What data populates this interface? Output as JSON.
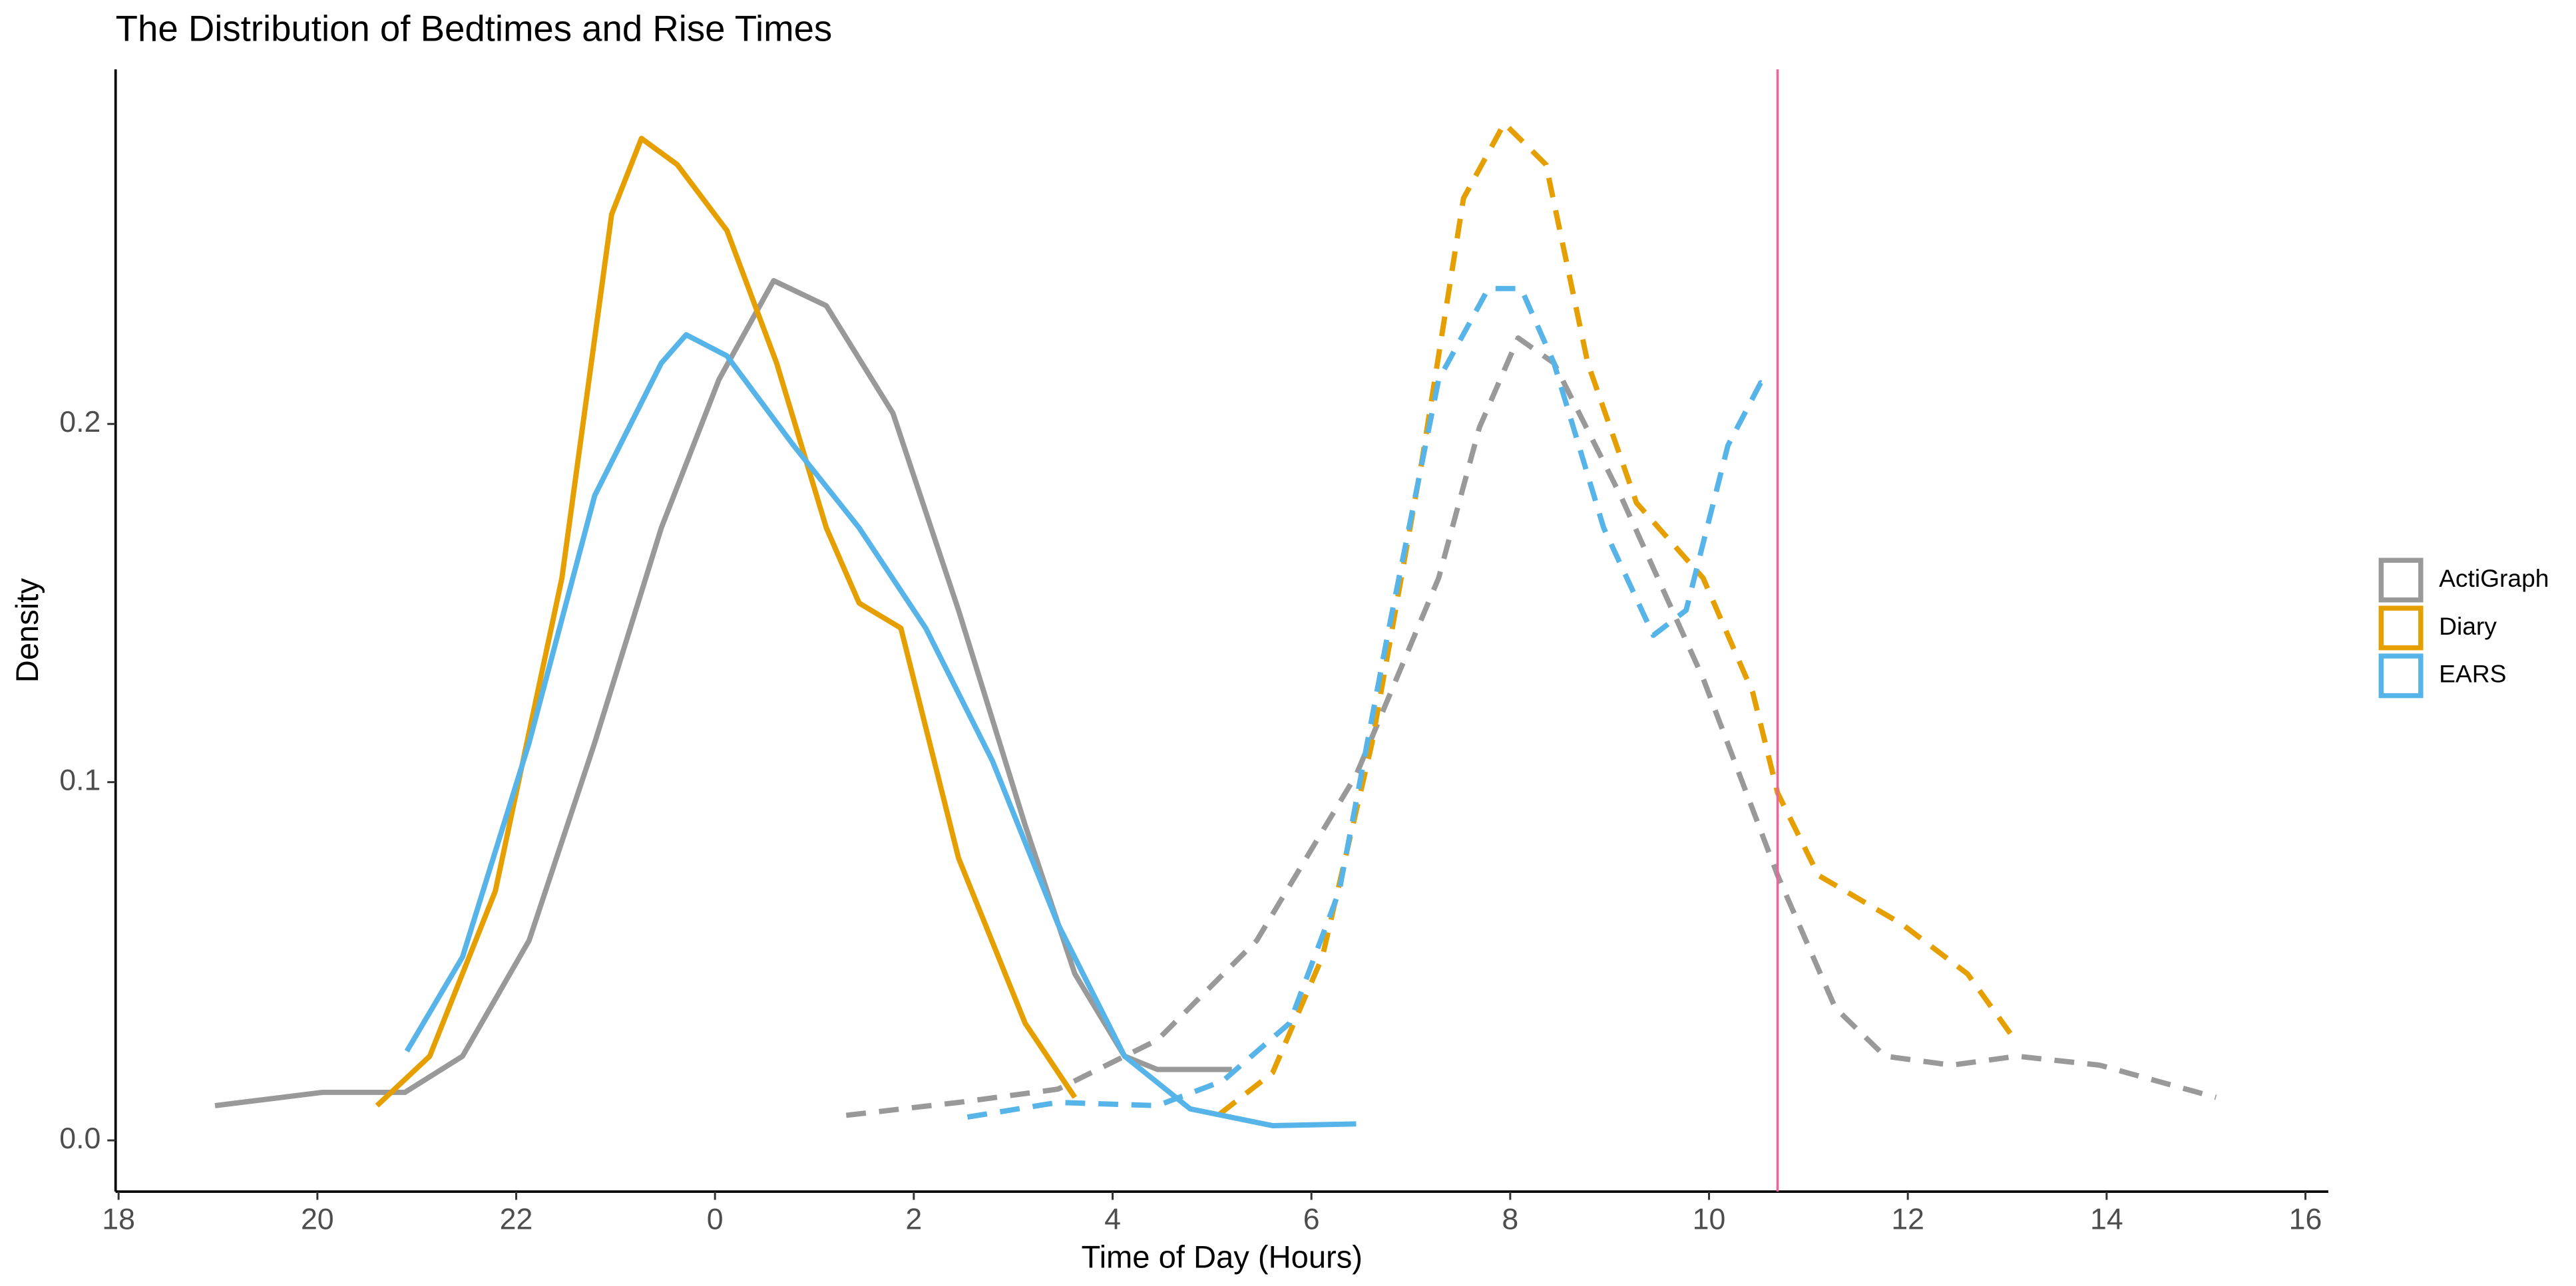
{
  "chart_data": {
    "type": "density",
    "title": "The Distribution of Bedtimes and Rise Times",
    "x_label": "Time of Day (Hours)",
    "y_label": "Density",
    "xlim": [
      17.97,
      40.23
    ],
    "ylim": [
      -0.0143,
      0.299
    ],
    "xticks": [
      18,
      20,
      22,
      {
        "value": 24,
        "label": "0"
      },
      {
        "value": 26,
        "label": "2"
      },
      {
        "value": 28,
        "label": "4"
      },
      {
        "value": 30,
        "label": "6"
      },
      {
        "value": 32,
        "label": "8"
      },
      {
        "value": 34,
        "label": "10"
      },
      {
        "value": 36,
        "label": "12"
      },
      {
        "value": 38,
        "label": "14"
      },
      {
        "value": 40,
        "label": "16"
      }
    ],
    "yticks": [
      {
        "value": 0,
        "label": "0.0"
      },
      0.1,
      0.2
    ],
    "vline": {
      "x": 34.69,
      "color": "#e8679a"
    },
    "grid": false,
    "legend_position": "right",
    "series": [
      {
        "name": "ActiGraph",
        "color": "#999999",
        "curves": [
          {
            "linetype": "solid",
            "x": [
              18.97,
              20.05,
              20.88,
              21.46,
              22.13,
              22.79,
              23.46,
              24.04,
              24.59,
              25.12,
              25.79,
              26.45,
              27.12,
              27.62,
              28.12,
              28.45,
              29.2
            ],
            "values": [
              0.0097,
              0.0134,
              0.0134,
              0.0235,
              0.0558,
              0.111,
              0.171,
              0.2124,
              0.24,
              0.233,
              0.203,
              0.148,
              0.088,
              0.0465,
              0.0235,
              0.0198,
              0.0198
            ]
          },
          {
            "linetype": "dashed",
            "x": [
              25.32,
              26.45,
              27.45,
              28.45,
              29.45,
              30.45,
              31.28,
              31.69,
              32.08,
              32.44,
              33.11,
              33.94,
              34.69,
              35.27,
              35.77,
              36.44,
              37.1,
              37.93,
              39.1
            ],
            "values": [
              0.007,
              0.0106,
              0.0143,
              0.028,
              0.0558,
              0.102,
              0.157,
              0.199,
              0.224,
              0.217,
              0.18,
              0.129,
              0.074,
              0.037,
              0.0235,
              0.021,
              0.0235,
              0.021,
              0.012
            ]
          }
        ]
      },
      {
        "name": "Diary",
        "color": "#e69f00",
        "curves": [
          {
            "linetype": "solid",
            "x": [
              20.6,
              21.13,
              21.79,
              22.46,
              22.96,
              23.26,
              23.62,
              24.12,
              24.62,
              25.12,
              25.45,
              25.87,
              26.45,
              27.12,
              27.62
            ],
            "values": [
              0.0097,
              0.0235,
              0.0696,
              0.157,
              0.2585,
              0.2797,
              0.2724,
              0.254,
              0.217,
              0.171,
              0.15,
              0.143,
              0.0788,
              0.0327,
              0.012
            ]
          },
          {
            "linetype": "dashed",
            "x": [
              29.08,
              29.61,
              30.11,
              30.61,
              31.11,
              31.53,
              31.94,
              32.36,
              32.78,
              33.27,
              33.94,
              34.44,
              34.69,
              35.1,
              35.94,
              36.6,
              37.1
            ],
            "values": [
              0.0074,
              0.0189,
              0.0512,
              0.111,
              0.1894,
              0.263,
              0.2839,
              0.2724,
              0.217,
              0.178,
              0.157,
              0.125,
              0.097,
              0.074,
              0.0604,
              0.0465,
              0.0272
            ]
          }
        ]
      },
      {
        "name": "EARS",
        "color": "#56b4e9",
        "curves": [
          {
            "linetype": "solid",
            "x": [
              20.9,
              21.46,
              22.13,
              22.79,
              23.46,
              23.71,
              24.12,
              24.79,
              25.45,
              26.12,
              26.79,
              27.45,
              28.12,
              28.78,
              29.61,
              30.45
            ],
            "values": [
              0.0249,
              0.0512,
              0.111,
              0.18,
              0.217,
              0.2249,
              0.219,
              0.194,
              0.171,
              0.143,
              0.106,
              0.0604,
              0.0235,
              0.0088,
              0.0041,
              0.0046
            ]
          },
          {
            "linetype": "dashed",
            "x": [
              26.54,
              27.45,
              28.45,
              29.11,
              29.78,
              30.28,
              30.78,
              31.28,
              31.78,
              32.11,
              32.44,
              32.94,
              33.44,
              33.77,
              34.19,
              34.52,
              34.64
            ],
            "values": [
              0.0065,
              0.0106,
              0.0097,
              0.0166,
              0.0327,
              0.0696,
              0.143,
              0.2124,
              0.2378,
              0.2378,
              0.217,
              0.171,
              0.141,
              0.148,
              0.194,
              0.2115,
              0.21
            ]
          }
        ]
      }
    ]
  }
}
